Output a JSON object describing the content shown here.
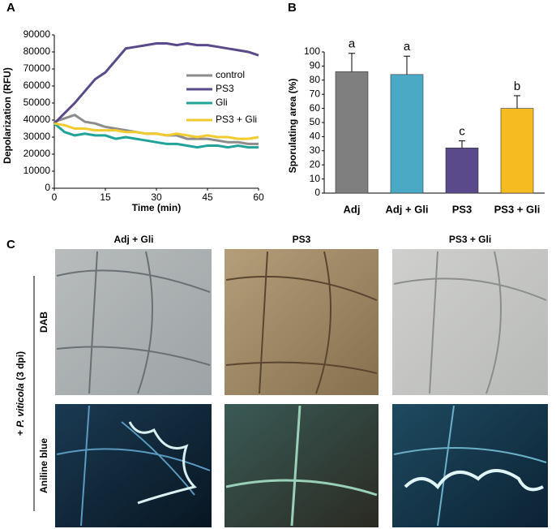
{
  "panels": {
    "a": "A",
    "b": "B",
    "c": "C"
  },
  "chart_data": [
    {
      "type": "line",
      "x_label": "Time (min)",
      "y_label": "Depolarization (RFU)",
      "x": [
        0,
        3,
        6,
        9,
        12,
        15,
        18,
        21,
        24,
        27,
        30,
        33,
        36,
        39,
        42,
        45,
        48,
        51,
        54,
        57,
        60
      ],
      "xlim": [
        0,
        60
      ],
      "xticks": [
        0,
        15,
        30,
        45,
        60
      ],
      "ylim": [
        0,
        90000
      ],
      "yticks": [
        0,
        10000,
        20000,
        30000,
        40000,
        50000,
        60000,
        70000,
        80000,
        90000
      ],
      "legend": "upper right",
      "series": [
        {
          "name": "control",
          "color": "#8c8c8c",
          "values": [
            39000,
            41000,
            43000,
            39000,
            38000,
            36000,
            35000,
            34000,
            33000,
            32000,
            32000,
            31000,
            31000,
            29000,
            29000,
            29000,
            28000,
            27000,
            27000,
            26000,
            26000
          ]
        },
        {
          "name": "PS3",
          "color": "#5b4a8b",
          "values": [
            38000,
            44000,
            50000,
            57000,
            64000,
            68000,
            75000,
            82000,
            83000,
            84000,
            85000,
            85000,
            84000,
            85000,
            84000,
            84000,
            83000,
            82000,
            81000,
            80000,
            78000
          ]
        },
        {
          "name": "Gli",
          "color": "#22a39a",
          "values": [
            38000,
            33000,
            31000,
            32000,
            31000,
            31000,
            29000,
            30000,
            29000,
            28000,
            27000,
            26000,
            26000,
            25000,
            24000,
            25000,
            25000,
            24000,
            25000,
            24000,
            24000
          ]
        },
        {
          "name": "PS3 + Gli",
          "color": "#f2cc2e",
          "values": [
            38000,
            37000,
            35000,
            35000,
            34000,
            34000,
            34000,
            33000,
            33000,
            32000,
            32000,
            31000,
            32000,
            31000,
            30000,
            31000,
            30000,
            30000,
            29000,
            29000,
            30000
          ]
        }
      ]
    },
    {
      "type": "bar",
      "y_label": "Sporulating area (%)",
      "categories": [
        "Adj",
        "Adj + Gli",
        "PS3",
        "PS3 + Gli"
      ],
      "values": [
        86,
        84,
        32,
        60
      ],
      "errors": [
        13,
        13,
        5,
        9
      ],
      "colors": [
        "#7f7f7f",
        "#4aaac6",
        "#5b4a8b",
        "#f7bb22"
      ],
      "annotations": [
        "a",
        "a",
        "c",
        "b"
      ],
      "ylim": [
        0,
        100
      ],
      "yticks": [
        0,
        10,
        20,
        30,
        40,
        50,
        60,
        70,
        80,
        90,
        100
      ]
    }
  ],
  "panel_c": {
    "columns": [
      "Adj + Gli",
      "PS3",
      "PS3 + Gli"
    ],
    "rows": [
      "DAB",
      "Aniline blue"
    ],
    "side_label": [
      "+ ",
      "P. viticola",
      " (3 dpi)"
    ]
  }
}
